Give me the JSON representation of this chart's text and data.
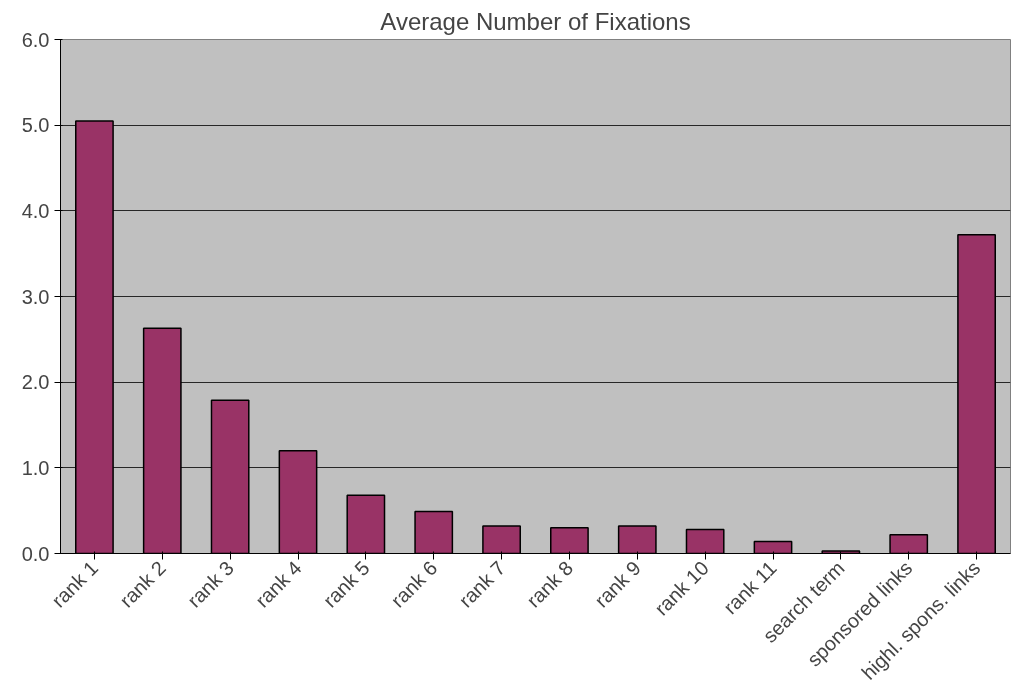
{
  "chart_data": {
    "type": "bar",
    "title": "Average Number of Fixations",
    "categories": [
      "rank 1",
      "rank 2",
      "rank 3",
      "rank 4",
      "rank 5",
      "rank 6",
      "rank 7",
      "rank 8",
      "rank 9",
      "rank 10",
      "rank 11",
      "search term",
      "sponsored links",
      "highl. spons. links"
    ],
    "values": [
      5.05,
      2.63,
      1.79,
      1.2,
      0.68,
      0.49,
      0.32,
      0.3,
      0.32,
      0.28,
      0.14,
      0.03,
      0.22,
      3.72
    ],
    "color": "#993366",
    "ylim": [
      0,
      6
    ],
    "yticks": [
      {
        "value": 0,
        "label": "0.0"
      },
      {
        "value": 1,
        "label": "1.0"
      },
      {
        "value": 2,
        "label": "2.0"
      },
      {
        "value": 3,
        "label": "3.0"
      },
      {
        "value": 4,
        "label": "4.0"
      },
      {
        "value": 5,
        "label": "5.0"
      },
      {
        "value": 6,
        "label": "6.0"
      }
    ],
    "grid": "y"
  }
}
